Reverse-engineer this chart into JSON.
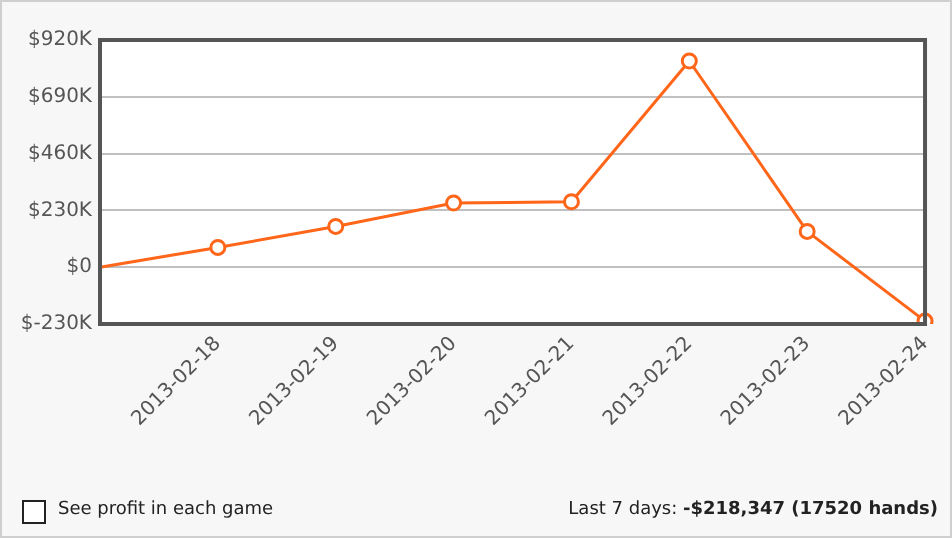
{
  "chart_data": {
    "type": "line",
    "categories": [
      null,
      "2013-02-18",
      "2013-02-19",
      "2013-02-20",
      "2013-02-21",
      "2013-02-22",
      "2013-02-23",
      "2013-02-24"
    ],
    "series": [
      {
        "color": "#ff6619",
        "values": [
          0,
          80000,
          165000,
          260000,
          265000,
          835000,
          145000,
          -218347
        ]
      }
    ],
    "ylim": [
      -230000,
      920000
    ],
    "yticks": [
      {
        "value": -230000,
        "label": "$-230K"
      },
      {
        "value": 0,
        "label": "$0"
      },
      {
        "value": 230000,
        "label": "$230K"
      },
      {
        "value": 460000,
        "label": "$460K"
      },
      {
        "value": 690000,
        "label": "$690K"
      },
      {
        "value": 920000,
        "label": "$920K"
      }
    ],
    "grid": "y",
    "legend": false,
    "marker": "circle",
    "line_style": "solid",
    "annotations": [
      "See profit in each game",
      "Last 7 days: -$218,347 (17520 hands)"
    ]
  }
}
